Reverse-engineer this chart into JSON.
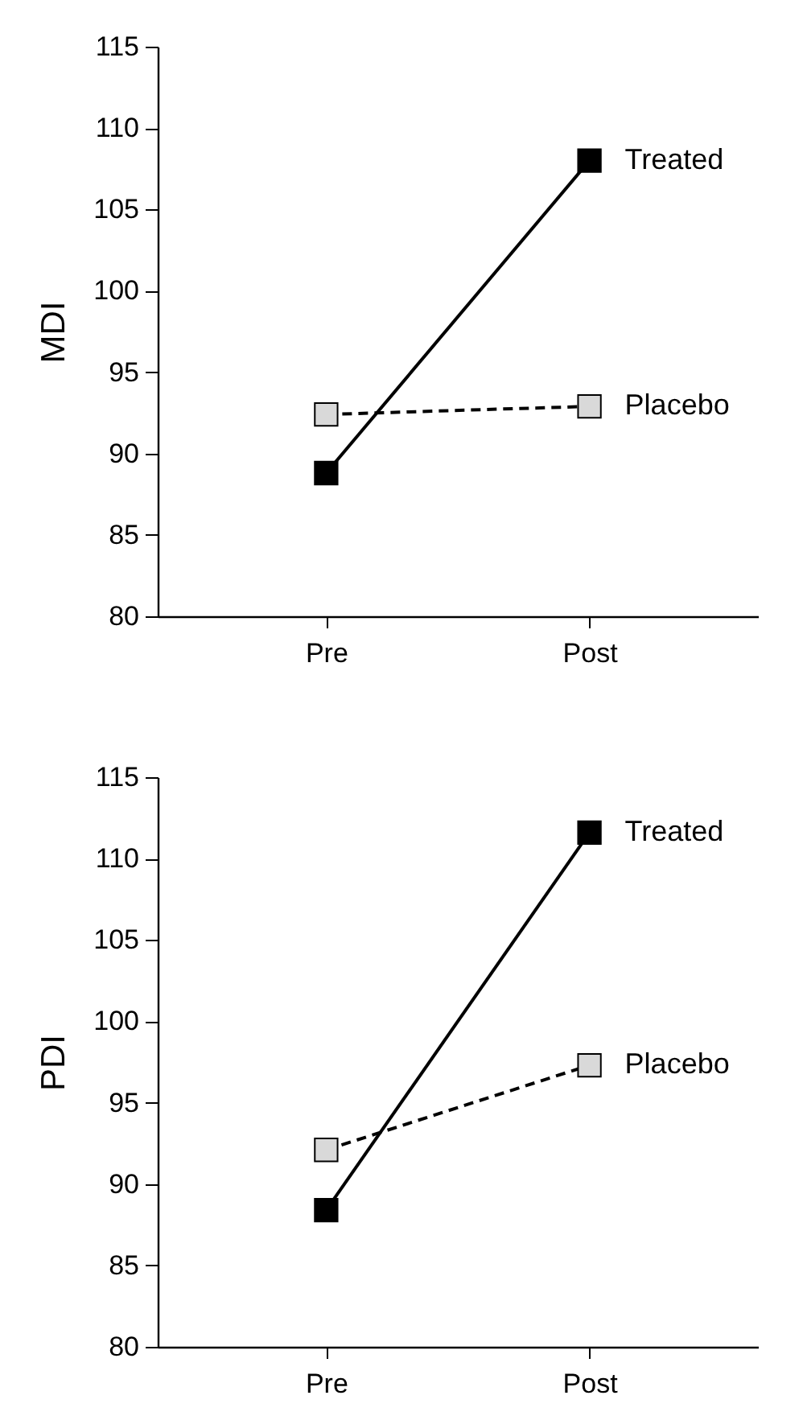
{
  "chart_data": [
    {
      "type": "line",
      "categories": [
        "Pre",
        "Post"
      ],
      "ylabel": "MDI",
      "ylim": [
        80,
        115
      ],
      "yticks": [
        80,
        85,
        90,
        95,
        100,
        105,
        110,
        115
      ],
      "marker": "square",
      "series": [
        {
          "name": "Treated",
          "color": "#000000",
          "line_style": "solid",
          "values": [
            88.8,
            108.0
          ]
        },
        {
          "name": "Placebo",
          "color": "#d9d9d9",
          "line_style": "dashed",
          "values": [
            92.4,
            92.9
          ]
        }
      ]
    },
    {
      "type": "line",
      "categories": [
        "Pre",
        "Post"
      ],
      "ylabel": "PDI",
      "ylim": [
        80,
        115
      ],
      "yticks": [
        80,
        85,
        90,
        95,
        100,
        105,
        110,
        115
      ],
      "marker": "square",
      "series": [
        {
          "name": "Treated",
          "color": "#000000",
          "line_style": "solid",
          "values": [
            88.4,
            111.6
          ]
        },
        {
          "name": "Placebo",
          "color": "#d9d9d9",
          "line_style": "dashed",
          "values": [
            92.1,
            97.3
          ]
        }
      ]
    }
  ]
}
